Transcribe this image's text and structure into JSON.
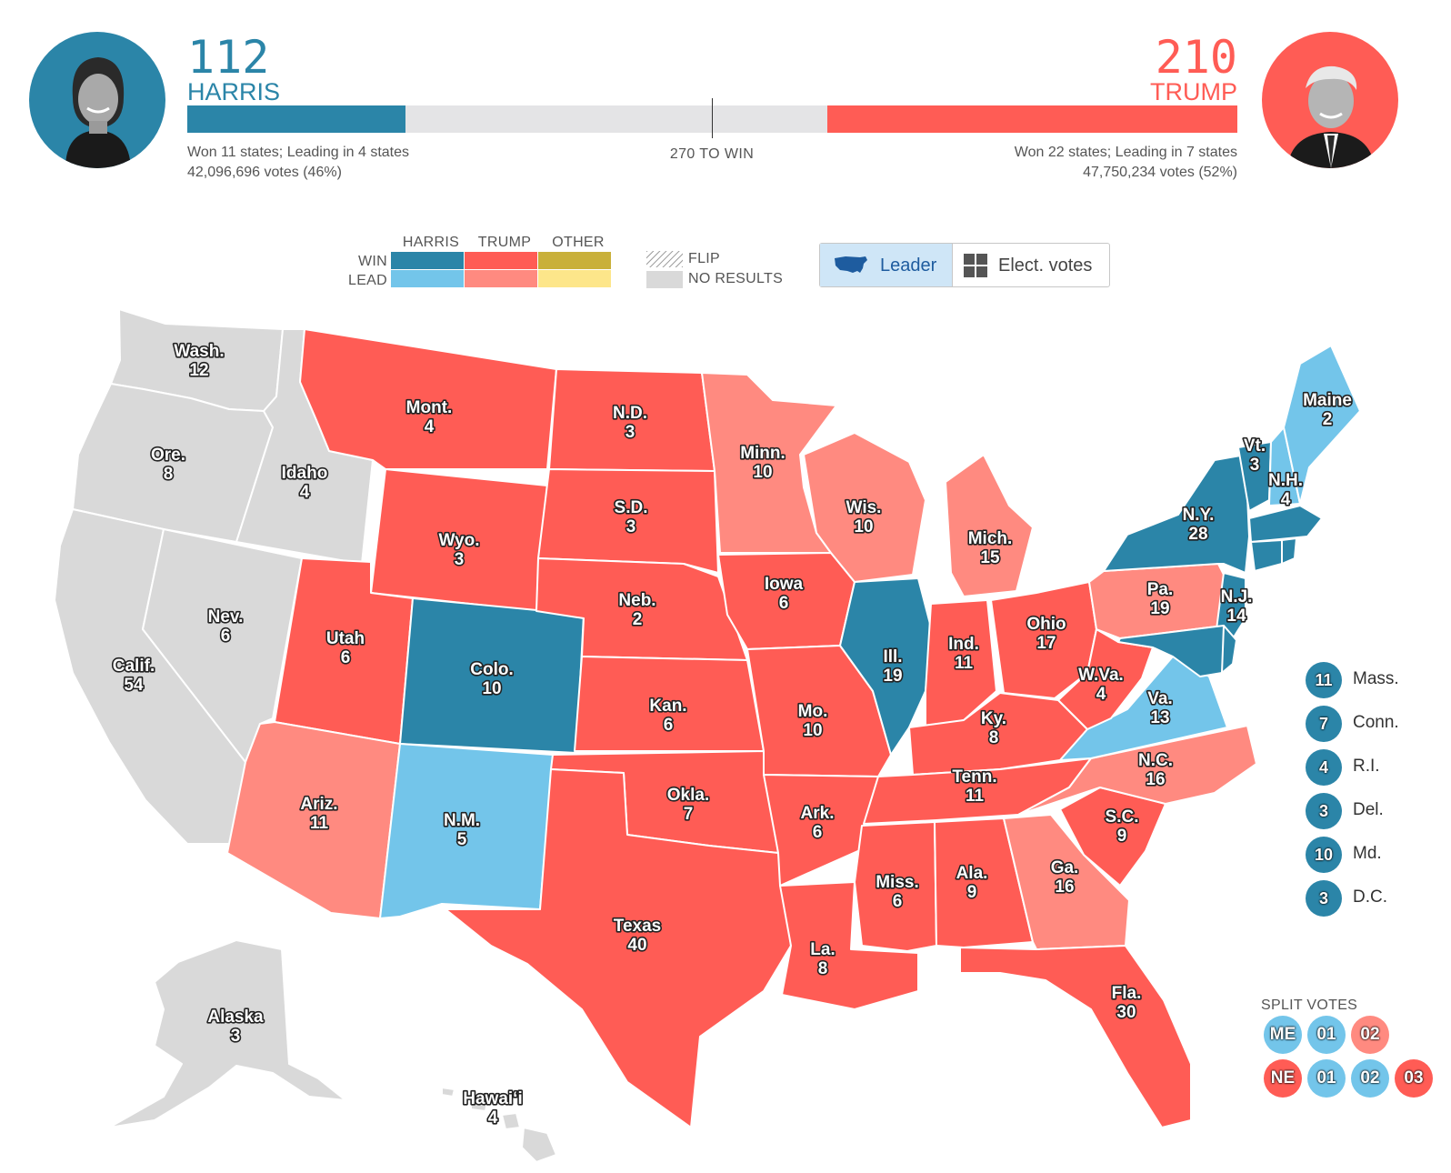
{
  "colors": {
    "harris_win": "#2b85a8",
    "harris_lead": "#73c5ea",
    "trump_win": "#ff5c55",
    "trump_lead": "#ff8a80",
    "other_win": "#c9b03a",
    "other_lead": "#fde68a",
    "no_results": "#d9d9d9"
  },
  "header": {
    "harris": {
      "votes": "112",
      "name": "HARRIS",
      "summary": "Won 11 states; Leading in 4 states",
      "popular": "42,096,696 votes (46%)",
      "ev_value": 112
    },
    "trump": {
      "votes": "210",
      "name": "TRUMP",
      "summary": "Won 22 states; Leading in 7 states",
      "popular": "47,750,234 votes (52%)",
      "ev_value": 210
    },
    "to_win": "270 TO WIN",
    "total_ev": 538
  },
  "legend": {
    "cols": [
      "HARRIS",
      "TRUMP",
      "OTHER"
    ],
    "rows": [
      "WIN",
      "LEAD"
    ],
    "flip": "FLIP",
    "no_results": "NO RESULTS"
  },
  "toggle": {
    "leader": "Leader",
    "elect": "Elect. votes"
  },
  "states": [
    {
      "abbr": "Wash.",
      "ev": "12",
      "status": "none"
    },
    {
      "abbr": "Ore.",
      "ev": "8",
      "status": "none"
    },
    {
      "abbr": "Idaho",
      "ev": "4",
      "status": "none"
    },
    {
      "abbr": "Calif.",
      "ev": "54",
      "status": "none"
    },
    {
      "abbr": "Nev.",
      "ev": "6",
      "status": "none"
    },
    {
      "abbr": "Mont.",
      "ev": "4",
      "status": "trump_win"
    },
    {
      "abbr": "Wyo.",
      "ev": "3",
      "status": "trump_win"
    },
    {
      "abbr": "Utah",
      "ev": "6",
      "status": "trump_win"
    },
    {
      "abbr": "Colo.",
      "ev": "10",
      "status": "harris_win"
    },
    {
      "abbr": "Ariz.",
      "ev": "11",
      "status": "trump_lead"
    },
    {
      "abbr": "N.M.",
      "ev": "5",
      "status": "harris_lead"
    },
    {
      "abbr": "N.D.",
      "ev": "3",
      "status": "trump_win"
    },
    {
      "abbr": "S.D.",
      "ev": "3",
      "status": "trump_win"
    },
    {
      "abbr": "Neb.",
      "ev": "2",
      "status": "trump_win"
    },
    {
      "abbr": "Kan.",
      "ev": "6",
      "status": "trump_win"
    },
    {
      "abbr": "Okla.",
      "ev": "7",
      "status": "trump_win"
    },
    {
      "abbr": "Texas",
      "ev": "40",
      "status": "trump_win"
    },
    {
      "abbr": "Minn.",
      "ev": "10",
      "status": "trump_lead"
    },
    {
      "abbr": "Iowa",
      "ev": "6",
      "status": "trump_win"
    },
    {
      "abbr": "Mo.",
      "ev": "10",
      "status": "trump_win"
    },
    {
      "abbr": "Ark.",
      "ev": "6",
      "status": "trump_win"
    },
    {
      "abbr": "La.",
      "ev": "8",
      "status": "trump_win"
    },
    {
      "abbr": "Wis.",
      "ev": "10",
      "status": "trump_lead"
    },
    {
      "abbr": "Ill.",
      "ev": "19",
      "status": "harris_win"
    },
    {
      "abbr": "Mich.",
      "ev": "15",
      "status": "trump_lead"
    },
    {
      "abbr": "Ind.",
      "ev": "11",
      "status": "trump_win"
    },
    {
      "abbr": "Ohio",
      "ev": "17",
      "status": "trump_win"
    },
    {
      "abbr": "Ky.",
      "ev": "8",
      "status": "trump_win"
    },
    {
      "abbr": "Tenn.",
      "ev": "11",
      "status": "trump_win"
    },
    {
      "abbr": "Miss.",
      "ev": "6",
      "status": "trump_win"
    },
    {
      "abbr": "Ala.",
      "ev": "9",
      "status": "trump_win"
    },
    {
      "abbr": "Ga.",
      "ev": "16",
      "status": "trump_lead"
    },
    {
      "abbr": "Fla.",
      "ev": "30",
      "status": "trump_win"
    },
    {
      "abbr": "S.C.",
      "ev": "9",
      "status": "trump_win"
    },
    {
      "abbr": "N.C.",
      "ev": "16",
      "status": "trump_lead"
    },
    {
      "abbr": "Va.",
      "ev": "13",
      "status": "harris_lead"
    },
    {
      "abbr": "W.Va.",
      "ev": "4",
      "status": "trump_win"
    },
    {
      "abbr": "Pa.",
      "ev": "19",
      "status": "trump_lead"
    },
    {
      "abbr": "N.Y.",
      "ev": "28",
      "status": "harris_win"
    },
    {
      "abbr": "N.J.",
      "ev": "14",
      "status": "harris_win"
    },
    {
      "abbr": "Vt.",
      "ev": "3",
      "status": "harris_win"
    },
    {
      "abbr": "N.H.",
      "ev": "4",
      "status": "harris_lead"
    },
    {
      "abbr": "Maine",
      "ev": "2",
      "status": "harris_lead"
    },
    {
      "abbr": "Alaska",
      "ev": "3",
      "status": "none"
    },
    {
      "abbr": "Hawaiʻi",
      "ev": "4",
      "status": "none"
    }
  ],
  "small_states": [
    {
      "ev": "11",
      "name": "Mass.",
      "status": "harris_win"
    },
    {
      "ev": "7",
      "name": "Conn.",
      "status": "harris_win"
    },
    {
      "ev": "4",
      "name": "R.I.",
      "status": "harris_win"
    },
    {
      "ev": "3",
      "name": "Del.",
      "status": "harris_win"
    },
    {
      "ev": "10",
      "name": "Md.",
      "status": "harris_win"
    },
    {
      "ev": "3",
      "name": "D.C.",
      "status": "harris_win"
    }
  ],
  "split_votes": {
    "title": "SPLIT VOTES",
    "maine": [
      {
        "label": "ME",
        "status": "harris_lead"
      },
      {
        "label": "01",
        "status": "harris_lead"
      },
      {
        "label": "02",
        "status": "trump_lead"
      }
    ],
    "nebraska": [
      {
        "label": "NE",
        "status": "trump_win"
      },
      {
        "label": "01",
        "status": "harris_lead"
      },
      {
        "label": "02",
        "status": "harris_lead"
      },
      {
        "label": "03",
        "status": "trump_win"
      }
    ]
  }
}
